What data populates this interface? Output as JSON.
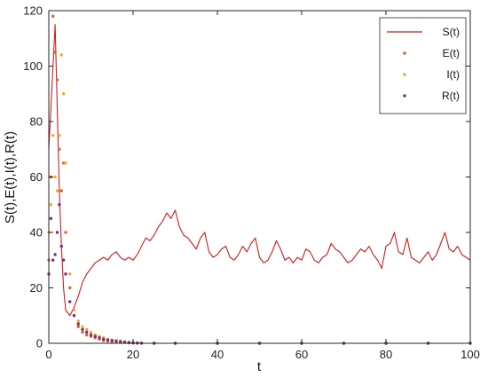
{
  "chart_data": {
    "type": "line",
    "title": "",
    "xlabel": "t",
    "ylabel": "S(t),E(t),I(t),R(t)",
    "xlim": [
      0,
      100
    ],
    "ylim": [
      0,
      120
    ],
    "xticks": [
      "0",
      "20",
      "40",
      "60",
      "80",
      "100"
    ],
    "yticks": [
      "0",
      "20",
      "40",
      "60",
      "80",
      "100",
      "120"
    ],
    "grid": false,
    "legend_position": "top-right",
    "series": [
      {
        "name": "S(t)",
        "style": "line",
        "color": "#cc1f1f",
        "x": [
          0,
          0.5,
          1,
          1.5,
          2,
          2.5,
          3,
          3.5,
          4,
          5,
          6,
          7,
          8,
          9,
          10,
          11,
          12,
          13,
          14,
          15,
          16,
          17,
          18,
          19,
          20,
          21,
          22,
          23,
          24,
          25,
          26,
          27,
          28,
          29,
          30,
          31,
          32,
          33,
          34,
          35,
          36,
          37,
          38,
          39,
          40,
          41,
          42,
          43,
          44,
          45,
          46,
          47,
          48,
          49,
          50,
          51,
          52,
          53,
          54,
          55,
          56,
          57,
          58,
          59,
          60,
          61,
          62,
          63,
          64,
          65,
          66,
          67,
          68,
          69,
          70,
          71,
          72,
          73,
          74,
          75,
          76,
          77,
          78,
          79,
          80,
          81,
          82,
          83,
          84,
          85,
          86,
          87,
          88,
          89,
          90,
          91,
          92,
          93,
          94,
          95,
          96,
          97,
          98,
          99,
          100
        ],
        "y": [
          70,
          85,
          100,
          115,
          85,
          55,
          35,
          20,
          12,
          10,
          13,
          17,
          22,
          25,
          27,
          29,
          30,
          31,
          30,
          32,
          33,
          31,
          30,
          31,
          30,
          32,
          35,
          38,
          37,
          39,
          42,
          44,
          47,
          45,
          48,
          42,
          39,
          38,
          36,
          34,
          38,
          40,
          33,
          31,
          32,
          34,
          35,
          31,
          30,
          32,
          35,
          33,
          36,
          38,
          31,
          29,
          30,
          33,
          37,
          34,
          30,
          31,
          29,
          31,
          30,
          34,
          33,
          30,
          29,
          31,
          32,
          36,
          34,
          33,
          31,
          29,
          30,
          32,
          34,
          33,
          35,
          32,
          30,
          27,
          35,
          36,
          40,
          33,
          32,
          38,
          31,
          30,
          29,
          31,
          33,
          30,
          32,
          36,
          40,
          34,
          33,
          35,
          32,
          31,
          30
        ]
      },
      {
        "name": "E(t)",
        "style": "dots",
        "color": "#e0622a",
        "x": [
          0,
          0.5,
          1,
          1.5,
          2,
          2.5,
          3,
          3.5,
          4,
          5,
          6,
          7,
          8,
          9,
          10,
          11,
          12,
          13,
          14,
          15,
          16,
          17,
          18,
          19,
          20,
          21,
          22,
          25,
          30,
          40,
          50,
          60,
          70,
          80,
          90,
          100
        ],
        "y": [
          30,
          60,
          118,
          105,
          95,
          70,
          55,
          65,
          40,
          20,
          10,
          6,
          4,
          3,
          2.5,
          2,
          1.5,
          1,
          0.8,
          0.6,
          0.5,
          0.4,
          0.3,
          0.2,
          0.1,
          0.05,
          0,
          0,
          0,
          0,
          0,
          0,
          0,
          0,
          0,
          0
        ]
      },
      {
        "name": "I(t)",
        "style": "dots",
        "color": "#e8b023",
        "x": [
          0,
          0.5,
          1,
          1.5,
          2,
          2.5,
          3,
          3.5,
          4,
          5,
          6,
          7,
          8,
          9,
          10,
          11,
          12,
          13,
          14,
          15,
          16,
          17,
          18,
          19,
          20,
          21,
          22,
          25,
          30,
          40,
          50,
          60,
          70,
          80,
          90,
          100
        ],
        "y": [
          40,
          50,
          75,
          60,
          55,
          75,
          104,
          90,
          65,
          25,
          12,
          8,
          6,
          5,
          4,
          3,
          2.5,
          2,
          1.5,
          1.2,
          1,
          0.8,
          0.6,
          0.4,
          0.3,
          0.2,
          0.1,
          0,
          0,
          0,
          0,
          0,
          0,
          0,
          0,
          0
        ]
      },
      {
        "name": "R(t)",
        "style": "dots",
        "color": "#7b2d8e",
        "x": [
          0,
          0.5,
          1,
          1.5,
          2,
          2.5,
          3,
          3.5,
          4,
          5,
          6,
          7,
          8,
          9,
          10,
          11,
          12,
          13,
          14,
          15,
          16,
          17,
          18,
          19,
          20,
          21,
          22,
          25,
          30,
          40,
          50,
          60,
          70,
          80,
          90,
          100
        ],
        "y": [
          25,
          45,
          30,
          32,
          40,
          50,
          35,
          30,
          25,
          15,
          10,
          7,
          5,
          4,
          3,
          2.5,
          2,
          1.5,
          1.2,
          1,
          0.8,
          0.6,
          0.4,
          0.3,
          0.2,
          0.1,
          0.05,
          0,
          0,
          0,
          0,
          0,
          0,
          0,
          0,
          0
        ]
      }
    ]
  }
}
